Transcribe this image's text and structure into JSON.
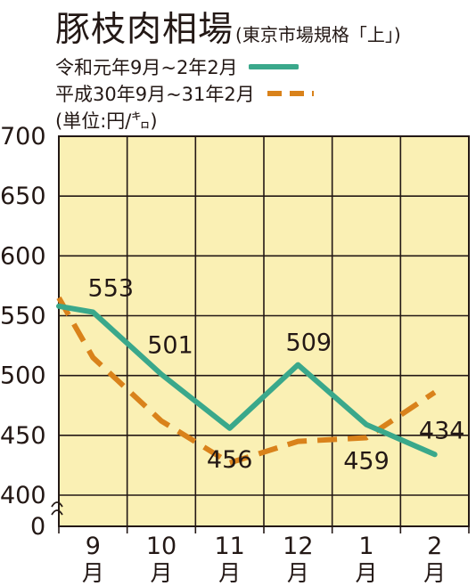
{
  "header": {
    "title": "豚枝肉相場",
    "subtitle": "(東京市場規格「上」)",
    "unit": "(単位:円/㌔)"
  },
  "legend": [
    {
      "label": "令和元年9月~2年2月",
      "style": "solid",
      "color": "#3aa88b"
    },
    {
      "label": "平成30年9月~31年2月",
      "style": "dashed",
      "color": "#d9821b"
    }
  ],
  "chart_data": {
    "type": "line",
    "categories": [
      "9",
      "10",
      "11",
      "12",
      "1",
      "2"
    ],
    "category_suffix": "月",
    "y_ticks": [
      700,
      650,
      600,
      550,
      500,
      450,
      400
    ],
    "y_zero_label": "0",
    "ylim": [
      400,
      700
    ],
    "axis_break": true,
    "grid": true,
    "plot_background": "#faf0b4",
    "series": [
      {
        "name": "令和元年9月~2年2月",
        "color": "#3aa88b",
        "dash": false,
        "x": [
          0,
          0.5,
          1.5,
          2.5,
          3.5,
          4.5,
          5.5
        ],
        "values": [
          558,
          553,
          501,
          456,
          509,
          459,
          434
        ],
        "labels": [
          null,
          "553",
          "501",
          "456",
          "509",
          "459",
          "434"
        ]
      },
      {
        "name": "平成30年9月~31年2月",
        "color": "#d9821b",
        "dash": true,
        "x": [
          0,
          0.5,
          1.5,
          2.5,
          3.5,
          4.5,
          5.5
        ],
        "values": [
          565,
          515,
          462,
          427,
          445,
          448,
          486
        ],
        "labels": [
          null,
          null,
          null,
          null,
          null,
          null,
          null
        ]
      }
    ]
  }
}
